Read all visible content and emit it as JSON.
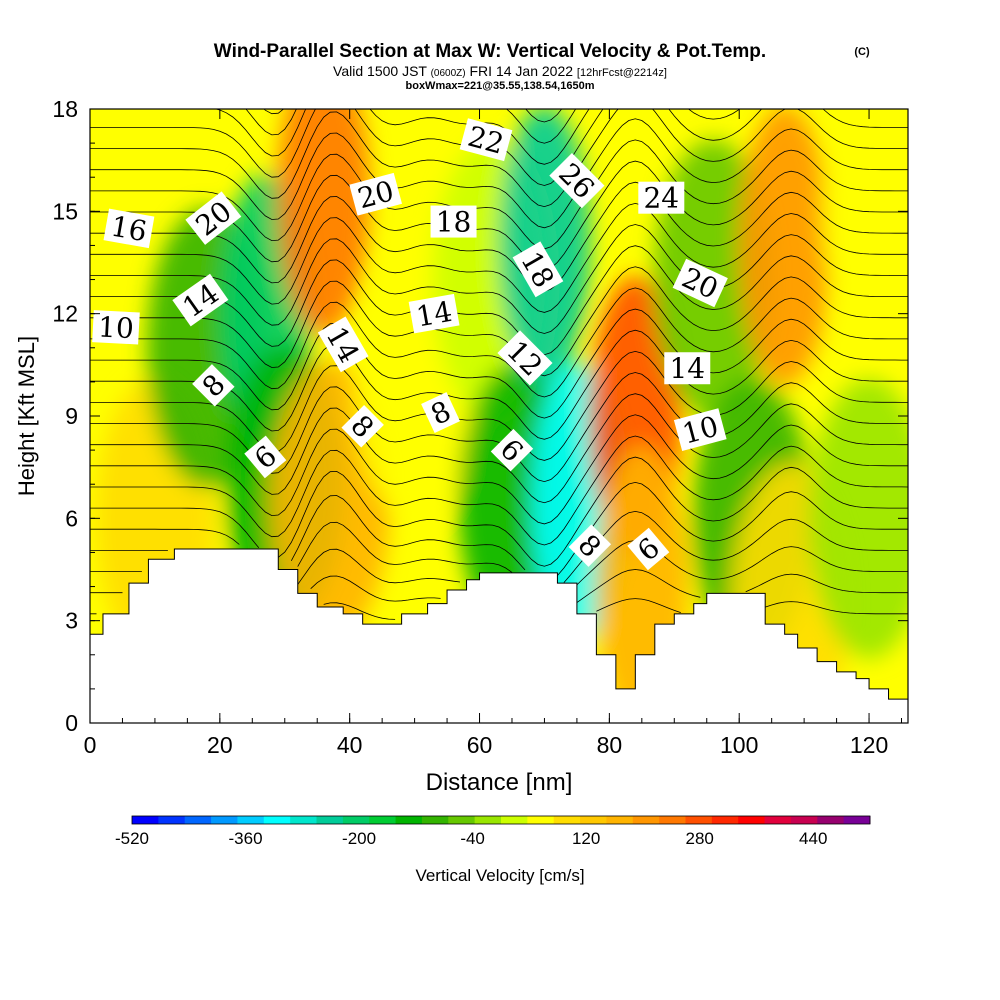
{
  "header": {
    "title_main": "Wind-Parallel Section at Max W: Vertical Velocity & Pot.Temp.",
    "title_mark": "(C)",
    "valid_prefix": "Valid 1500 JST",
    "valid_utc": "(0600Z)",
    "valid_date": "FRI 14 Jan 2022",
    "forecast_info": "[12hrFcst@2214z]",
    "box_info": "boxWmax=221@35.55,138.54,1650m"
  },
  "chart_data": {
    "type": "heatmap",
    "xlabel": "Distance [nm]",
    "ylabel": "Height [Kft MSL]",
    "xlim": [
      0,
      126
    ],
    "ylim": [
      0,
      18
    ],
    "x_ticks": [
      0,
      20,
      40,
      60,
      80,
      100,
      120
    ],
    "y_ticks": [
      0,
      3,
      6,
      9,
      12,
      15,
      18
    ],
    "colorbar": {
      "label": "Vertical Velocity [cm/s]",
      "range": [
        -520,
        520
      ],
      "step": 40,
      "tick_labels": [
        -520,
        -360,
        -200,
        -40,
        120,
        280,
        440
      ],
      "colors": [
        "#0000ff",
        "#0033ff",
        "#0066ff",
        "#0099ff",
        "#00ccff",
        "#00ffff",
        "#00e6cc",
        "#00cc99",
        "#00cc66",
        "#00cc33",
        "#00b400",
        "#33b400",
        "#66c800",
        "#99e600",
        "#ccff00",
        "#ffff00",
        "#ffdd00",
        "#ffc800",
        "#ffb400",
        "#ff9600",
        "#ff7800",
        "#ff5000",
        "#ff2800",
        "#ff0000",
        "#e1003c",
        "#c80050",
        "#96006e",
        "#780096"
      ]
    },
    "velocity_field": [
      {
        "x": 3,
        "z": 4.5,
        "w": 60
      },
      {
        "x": 10,
        "z": 6.0,
        "w": 100
      },
      {
        "x": 18,
        "z": 11,
        "w": -110
      },
      {
        "x": 27,
        "z": 12,
        "w": -200
      },
      {
        "x": 30,
        "z": 7,
        "w": -130
      },
      {
        "x": 36,
        "z": 15.5,
        "w": 250
      },
      {
        "x": 37,
        "z": 6.5,
        "w": 150
      },
      {
        "x": 50,
        "z": 10,
        "w": 40
      },
      {
        "x": 62,
        "z": 13,
        "w": 30
      },
      {
        "x": 66,
        "z": 6.5,
        "w": -130
      },
      {
        "x": 70,
        "z": 14,
        "w": -260
      },
      {
        "x": 75,
        "z": 6.5,
        "w": -300
      },
      {
        "x": 84,
        "z": 9,
        "w": 270
      },
      {
        "x": 85,
        "z": 4,
        "w": 160
      },
      {
        "x": 96,
        "z": 13,
        "w": -40
      },
      {
        "x": 102,
        "z": 6,
        "w": -80
      },
      {
        "x": 107,
        "z": 14,
        "w": 220
      },
      {
        "x": 108,
        "z": 3.5,
        "w": 100
      },
      {
        "x": 120,
        "z": 6,
        "w": -20
      },
      {
        "x": 122,
        "z": 15,
        "w": 40
      }
    ],
    "theta_contours": {
      "units": "C",
      "min": 4,
      "max": 36,
      "interval": 1,
      "labels": [
        {
          "text": "6",
          "x": 27,
          "z": 7.8,
          "angle": -40
        },
        {
          "text": "8",
          "x": 19,
          "z": 9.9,
          "angle": -45
        },
        {
          "text": "10",
          "x": 4,
          "z": 11.6,
          "angle": 3
        },
        {
          "text": "14",
          "x": 17,
          "z": 12.4,
          "angle": -35
        },
        {
          "text": "16",
          "x": 6,
          "z": 14.5,
          "angle": 10
        },
        {
          "text": "20",
          "x": 19,
          "z": 14.8,
          "angle": -38
        },
        {
          "text": "14",
          "x": 39,
          "z": 11.1,
          "angle": 60
        },
        {
          "text": "8",
          "x": 42,
          "z": 8.7,
          "angle": 45
        },
        {
          "text": "20",
          "x": 44,
          "z": 15.5,
          "angle": -15
        },
        {
          "text": "18",
          "x": 56,
          "z": 14.7,
          "angle": 0
        },
        {
          "text": "14",
          "x": 53,
          "z": 12.0,
          "angle": -10
        },
        {
          "text": "8",
          "x": 54,
          "z": 9.1,
          "angle": -25
        },
        {
          "text": "22",
          "x": 61,
          "z": 17.1,
          "angle": 15
        },
        {
          "text": "6",
          "x": 65,
          "z": 8.0,
          "angle": 45
        },
        {
          "text": "12",
          "x": 67,
          "z": 10.7,
          "angle": 45
        },
        {
          "text": "18",
          "x": 69,
          "z": 13.3,
          "angle": 60
        },
        {
          "text": "26",
          "x": 75,
          "z": 15.9,
          "angle": 45
        },
        {
          "text": "8",
          "x": 77,
          "z": 5.2,
          "angle": 45
        },
        {
          "text": "6",
          "x": 86,
          "z": 5.1,
          "angle": -40
        },
        {
          "text": "10",
          "x": 94,
          "z": 8.6,
          "angle": -15
        },
        {
          "text": "14",
          "x": 92,
          "z": 10.4,
          "angle": 0
        },
        {
          "text": "20",
          "x": 94,
          "z": 12.9,
          "angle": 25
        },
        {
          "text": "24",
          "x": 88,
          "z": 15.4,
          "angle": 0
        }
      ]
    },
    "terrain_profile": [
      [
        0,
        2.6
      ],
      [
        2,
        3.2
      ],
      [
        6,
        4.1
      ],
      [
        9,
        4.8
      ],
      [
        13,
        5.1
      ],
      [
        29,
        4.5
      ],
      [
        32,
        3.8
      ],
      [
        35,
        3.4
      ],
      [
        39,
        3.2
      ],
      [
        42,
        2.9
      ],
      [
        48,
        3.2
      ],
      [
        52,
        3.5
      ],
      [
        55,
        3.9
      ],
      [
        58,
        4.2
      ],
      [
        60,
        4.4
      ],
      [
        72,
        4.1
      ],
      [
        75,
        3.2
      ],
      [
        78,
        2.0
      ],
      [
        81,
        1.0
      ],
      [
        84,
        2.0
      ],
      [
        87,
        2.9
      ],
      [
        90,
        3.2
      ],
      [
        93,
        3.5
      ],
      [
        95,
        3.8
      ],
      [
        104,
        2.9
      ],
      [
        107,
        2.6
      ],
      [
        109,
        2.2
      ],
      [
        112,
        1.8
      ],
      [
        115,
        1.5
      ],
      [
        118,
        1.3
      ],
      [
        120,
        1.0
      ],
      [
        123,
        0.7
      ],
      [
        126,
        0.4
      ]
    ]
  }
}
